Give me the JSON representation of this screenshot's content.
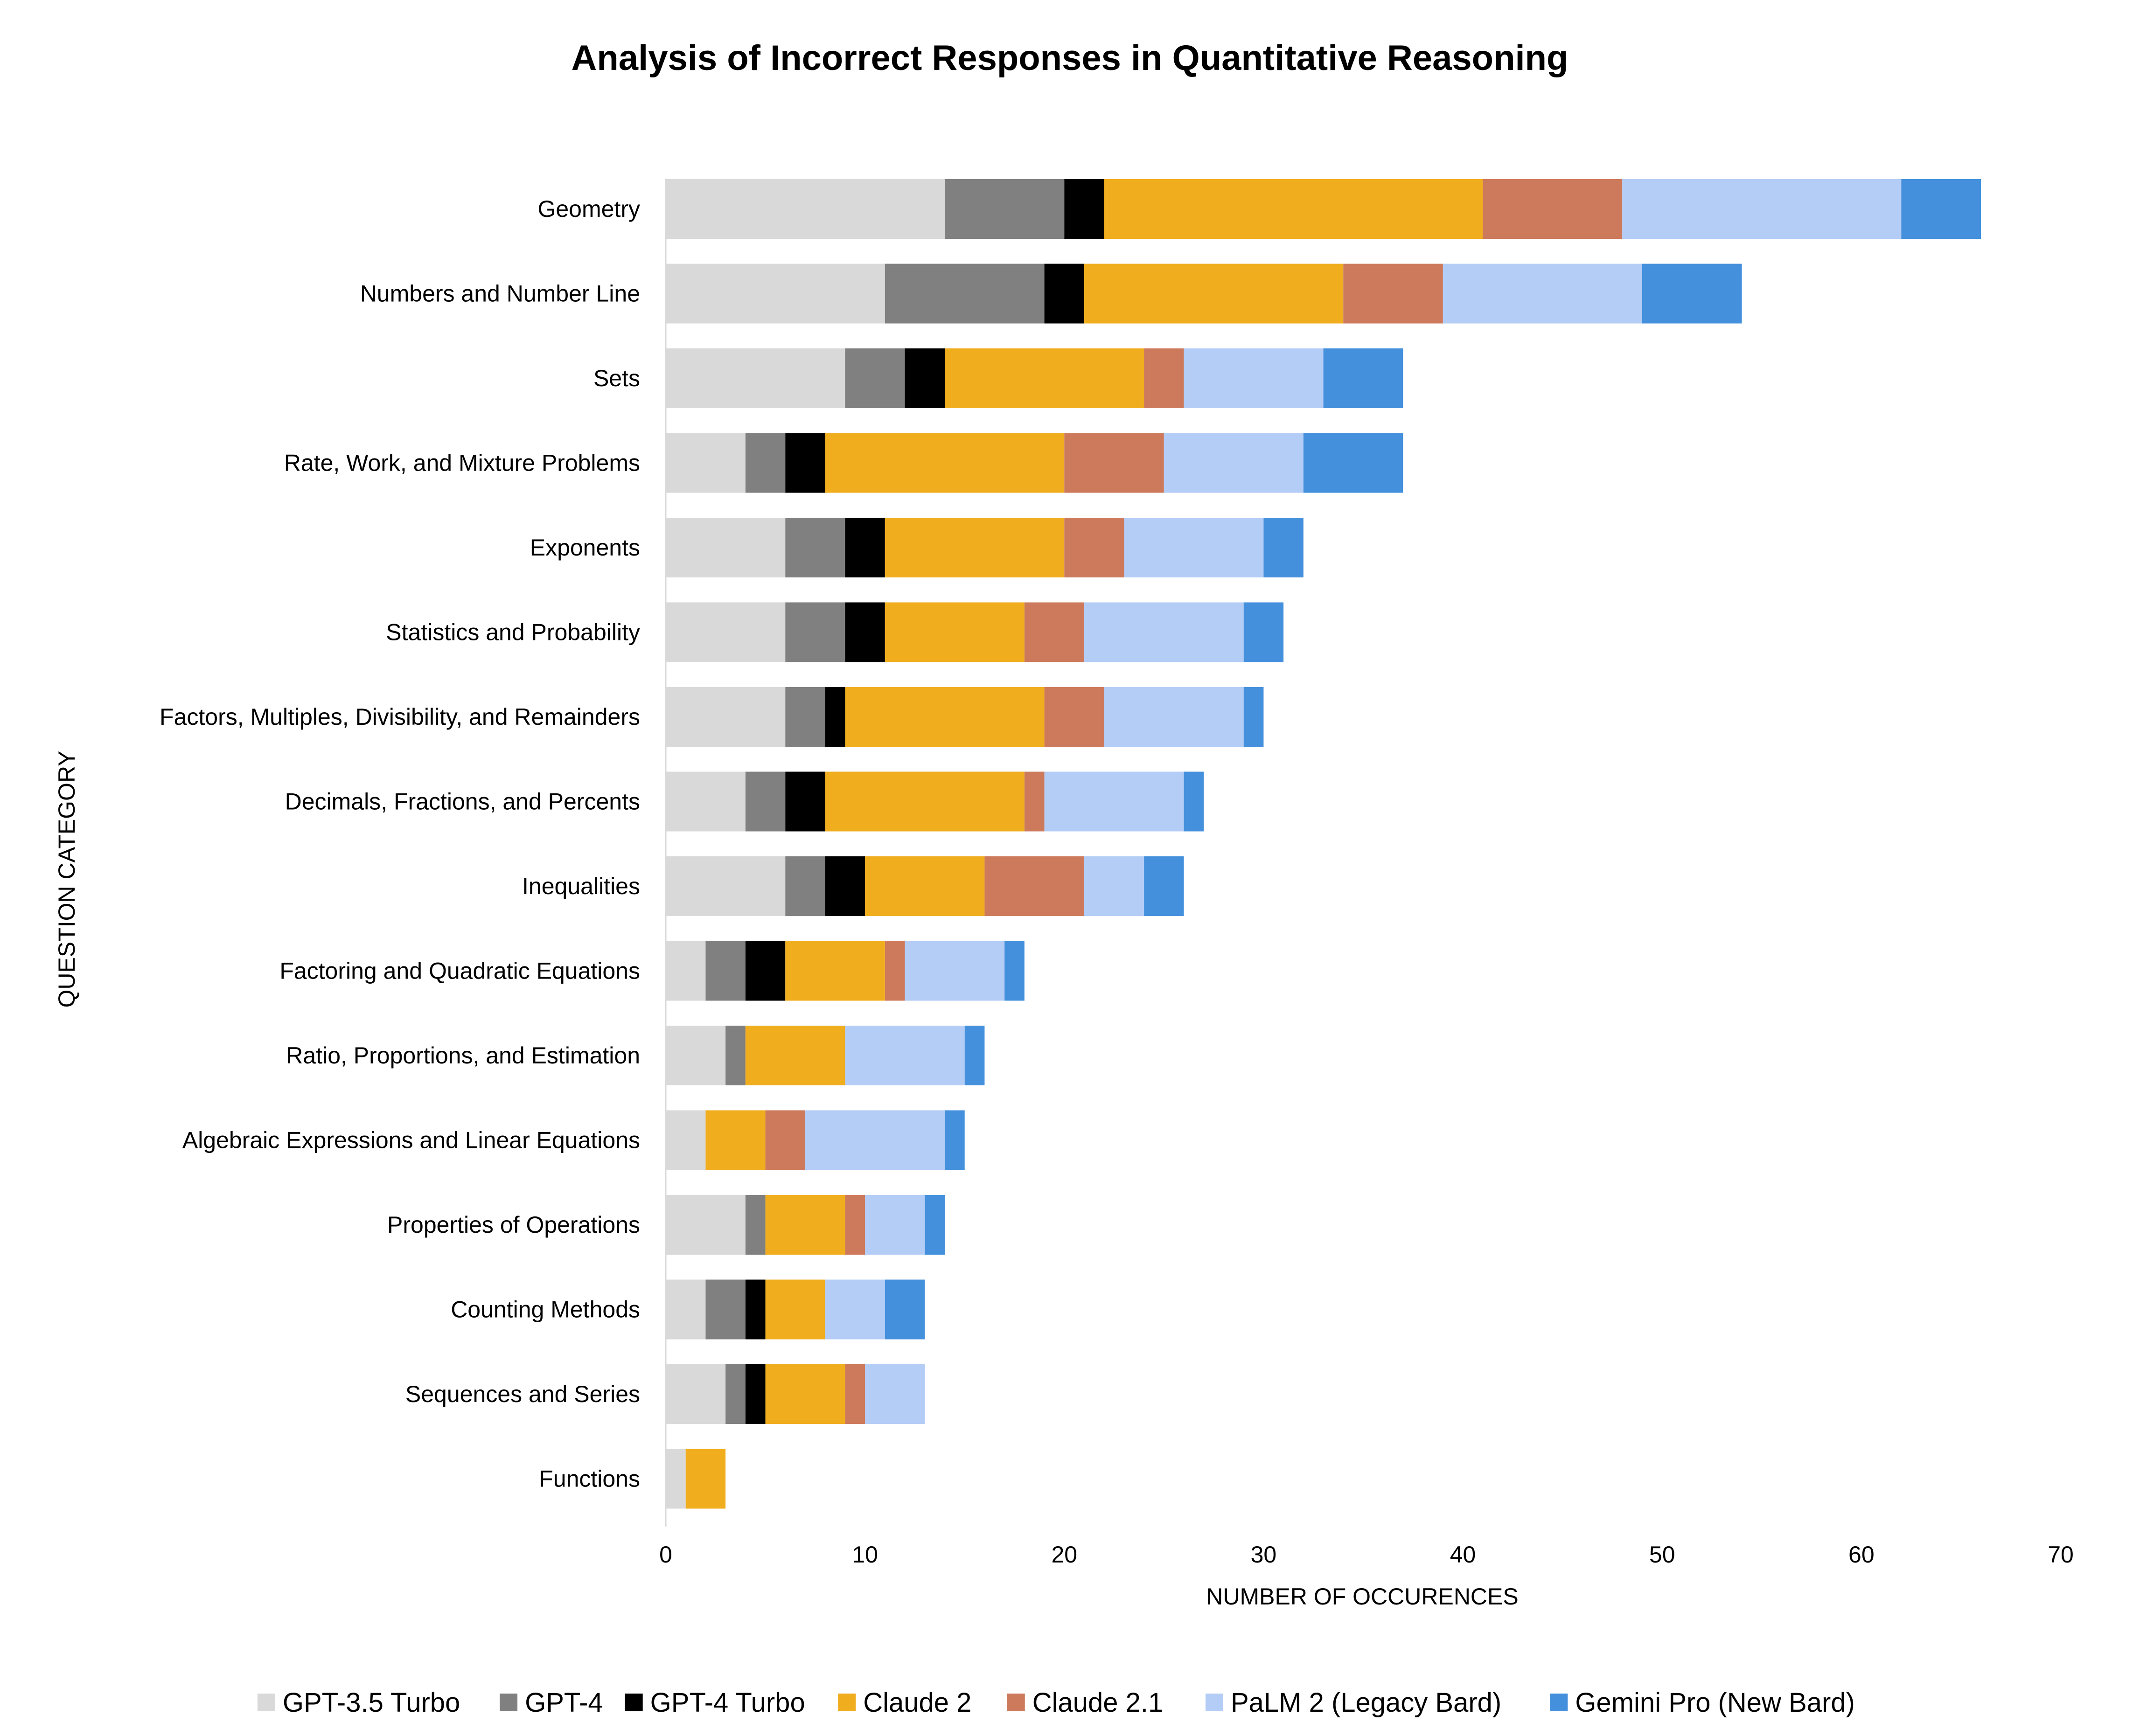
{
  "chart_data": {
    "type": "bar",
    "orientation": "horizontal",
    "stacked": true,
    "title": "Analysis of Incorrect Responses in Quantitative Reasoning",
    "xlabel": "NUMBER OF OCCURENCES",
    "ylabel": "QUESTION CATEGORY",
    "xlim": [
      0,
      70
    ],
    "xticks": [
      0,
      10,
      20,
      30,
      40,
      50,
      60,
      70
    ],
    "grid": false,
    "legend_position": "bottom",
    "categories": [
      "Geometry",
      "Numbers and Number Line",
      "Sets",
      "Rate, Work, and Mixture Problems",
      "Exponents",
      "Statistics and Probability",
      "Factors, Multiples, Divisibility, and Remainders",
      "Decimals, Fractions, and Percents",
      "Inequalities",
      "Factoring and Quadratic Equations",
      "Ratio, Proportions, and Estimation",
      "Algebraic Expressions and Linear Equations",
      "Properties of Operations",
      "Counting Methods",
      "Sequences and Series",
      "Functions"
    ],
    "series": [
      {
        "name": "GPT-3.5 Turbo",
        "color": "#d9d9d9",
        "values": [
          14,
          11,
          9,
          4,
          6,
          6,
          6,
          4,
          6,
          2,
          3,
          2,
          4,
          2,
          3,
          1
        ]
      },
      {
        "name": "GPT-4",
        "color": "#808080",
        "values": [
          6,
          8,
          3,
          2,
          3,
          3,
          2,
          2,
          2,
          2,
          1,
          0,
          1,
          2,
          1,
          0
        ]
      },
      {
        "name": "GPT-4 Turbo",
        "color": "#000000",
        "values": [
          2,
          2,
          2,
          2,
          2,
          2,
          1,
          2,
          2,
          2,
          0,
          0,
          0,
          1,
          1,
          0
        ]
      },
      {
        "name": "Claude 2",
        "color": "#f0ad1e",
        "values": [
          19,
          13,
          10,
          12,
          9,
          7,
          10,
          10,
          6,
          5,
          5,
          3,
          4,
          3,
          4,
          2
        ]
      },
      {
        "name": "Claude 2.1",
        "color": "#cd7a5c",
        "values": [
          7,
          5,
          2,
          5,
          3,
          3,
          3,
          1,
          5,
          1,
          0,
          2,
          1,
          0,
          1,
          0
        ]
      },
      {
        "name": "PaLM 2 (Legacy Bard)",
        "color": "#b4cdf7",
        "values": [
          14,
          10,
          7,
          7,
          7,
          8,
          7,
          7,
          3,
          5,
          6,
          7,
          3,
          3,
          3,
          0
        ]
      },
      {
        "name": "Gemini Pro (New Bard)",
        "color": "#4490dc",
        "values": [
          4,
          5,
          4,
          5,
          2,
          2,
          1,
          1,
          2,
          1,
          1,
          1,
          1,
          2,
          0,
          0
        ]
      }
    ]
  }
}
